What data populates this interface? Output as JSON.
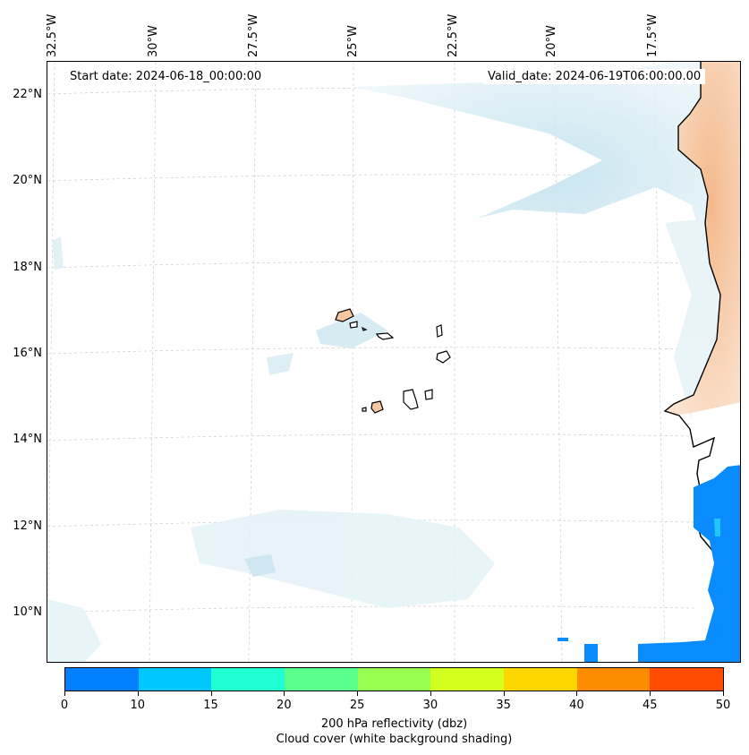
{
  "map": {
    "lon_labels": [
      "32.5°W",
      "30°W",
      "27.5°W",
      "25°W",
      "22.5°W",
      "20°W",
      "17.5°W"
    ],
    "lon_values": [
      -32.5,
      -30,
      -27.5,
      -25,
      -22.5,
      -20,
      -17.5
    ],
    "lat_labels": [
      "22°N",
      "20°N",
      "18°N",
      "16°N",
      "14°N",
      "12°N",
      "10°N"
    ],
    "lat_values": [
      22,
      20,
      18,
      16,
      14,
      12,
      10
    ],
    "extent": {
      "lon_min": -33.0,
      "lon_max": -15.6,
      "lat_min": 8.9,
      "lat_max": 22.8
    },
    "start_date": "Start date: 2024-06-18_00:00:00",
    "valid_date": "Valid_date: 2024-06-19T06:00:00.00",
    "gridlines": true
  },
  "colorbar": {
    "ticks": [
      "0",
      "10",
      "15",
      "20",
      "25",
      "30",
      "35",
      "40",
      "45",
      "50"
    ],
    "colors": [
      "#0080ff",
      "#00c8ff",
      "#1effd2",
      "#5aff8c",
      "#96ff50",
      "#d2ff1e",
      "#ffd700",
      "#ff8c00",
      "#ff4b00"
    ],
    "label_line1": "200 hPa reflectivity (dbz)",
    "label_line2": "Cloud cover (white background shading)"
  },
  "colors": {
    "land": "#f7c8a0",
    "cloud": "#cfe8f0",
    "reflectivity_low": "#0a8cff",
    "coastline": "#000000"
  }
}
